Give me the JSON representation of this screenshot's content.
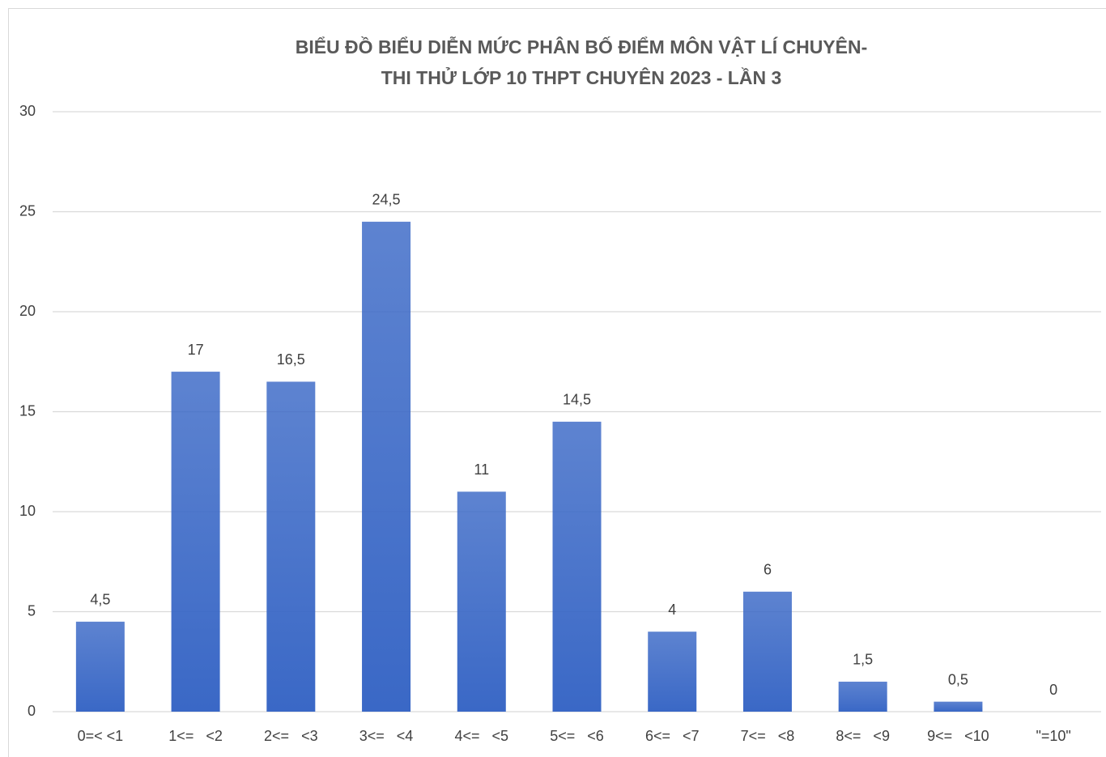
{
  "chart_data": {
    "type": "bar",
    "title": [
      "BIỂU ĐỒ BIỂU DIỄN MỨC PHÂN BỐ ĐIỂM MÔN VẬT LÍ CHUYÊN-",
      "THI THỬ LỚP 10 THPT CHUYÊN 2023 - LẦN 3"
    ],
    "categories": [
      "0=< <1",
      "1<=   <2",
      "2<=   <3",
      "3<=   <4",
      "4<=   <5",
      "5<=   <6",
      "6<=   <7",
      "7<=   <8",
      "8<=   <9",
      "9<=   <10",
      "\"=10\""
    ],
    "values": [
      4.5,
      17,
      16.5,
      24.5,
      11,
      14.5,
      4,
      6,
      1.5,
      0.5,
      0
    ],
    "value_labels": [
      "4,5",
      "17",
      "16,5",
      "24,5",
      "11",
      "14,5",
      "4",
      "6",
      "1,5",
      "0,5",
      "0"
    ],
    "color": "#3a68c6",
    "ylim": [
      0,
      30
    ],
    "yticks": [
      0,
      5,
      10,
      15,
      20,
      25,
      30
    ],
    "grid": true
  }
}
